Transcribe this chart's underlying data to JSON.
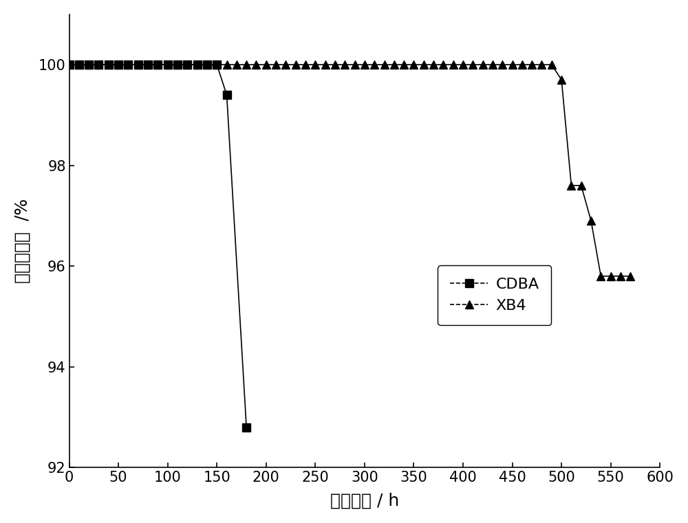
{
  "cdba_x": [
    0,
    10,
    20,
    30,
    40,
    50,
    60,
    70,
    80,
    90,
    100,
    110,
    120,
    130,
    140,
    150,
    160,
    180
  ],
  "cdba_y": [
    100,
    100,
    100,
    100,
    100,
    100,
    100,
    100,
    100,
    100,
    100,
    100,
    100,
    100,
    100,
    100,
    99.4,
    92.8
  ],
  "xb4_x": [
    0,
    10,
    20,
    30,
    40,
    50,
    60,
    70,
    80,
    90,
    100,
    110,
    120,
    130,
    140,
    150,
    160,
    170,
    180,
    190,
    200,
    210,
    220,
    230,
    240,
    250,
    260,
    270,
    280,
    290,
    300,
    310,
    320,
    330,
    340,
    350,
    360,
    370,
    380,
    390,
    400,
    410,
    420,
    430,
    440,
    450,
    460,
    470,
    480,
    490,
    500,
    510,
    520,
    530,
    540,
    550,
    560,
    570
  ],
  "xb4_y": [
    100,
    100,
    100,
    100,
    100,
    100,
    100,
    100,
    100,
    100,
    100,
    100,
    100,
    100,
    100,
    100,
    100,
    100,
    100,
    100,
    100,
    100,
    100,
    100,
    100,
    100,
    100,
    100,
    100,
    100,
    100,
    100,
    100,
    100,
    100,
    100,
    100,
    100,
    100,
    100,
    100,
    100,
    100,
    100,
    100,
    100,
    100,
    100,
    100,
    100,
    99.7,
    97.6,
    97.6,
    96.9,
    95.8,
    95.8,
    95.8,
    95.8
  ],
  "xlabel": "反应时间 / h",
  "ylabel": "甲醇转化率  /%",
  "xlim": [
    0,
    600
  ],
  "ylim": [
    92,
    101
  ],
  "yticks": [
    92,
    94,
    96,
    98,
    100
  ],
  "xticks": [
    0,
    50,
    100,
    150,
    200,
    250,
    300,
    350,
    400,
    450,
    500,
    550,
    600
  ],
  "legend_labels": [
    "CDBA",
    "XB4"
  ],
  "line_color": "#000000",
  "marker_cdba": "s",
  "marker_xb4": "^",
  "marker_size": 8,
  "linewidth": 1.2,
  "xlabel_fontsize": 18,
  "ylabel_fontsize": 18,
  "tick_fontsize": 15,
  "legend_fontsize": 16,
  "background_color": "#ffffff"
}
